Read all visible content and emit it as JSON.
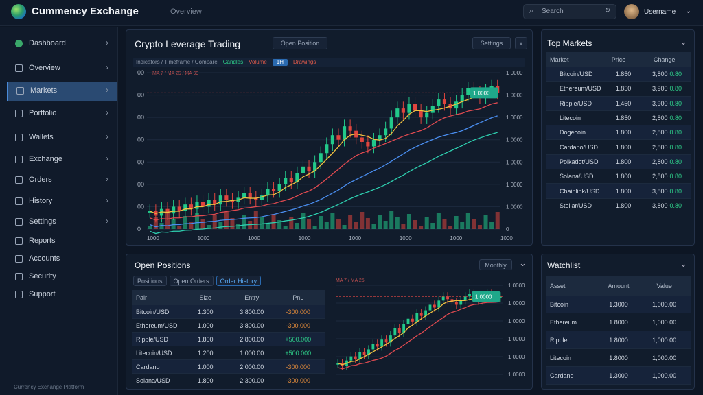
{
  "header": {
    "title": "Cummency Exchange",
    "subtitle": "Overview",
    "search_placeholder": "Search",
    "user": "Username"
  },
  "sidebar": {
    "items": [
      {
        "label": "Dashboard"
      },
      {
        "label": "Overview"
      },
      {
        "label": "Markets"
      },
      {
        "label": "Portfolio"
      },
      {
        "label": "Wallets"
      },
      {
        "label": "Exchange"
      },
      {
        "label": "Orders"
      },
      {
        "label": "History"
      },
      {
        "label": "Settings"
      },
      {
        "label": "Reports"
      },
      {
        "label": "Accounts"
      },
      {
        "label": "Security"
      },
      {
        "label": "Support"
      }
    ],
    "footer": "Currency Exchange Platform"
  },
  "main_chart": {
    "title": "Crypto Leverage Trading",
    "button": "Open Position",
    "toolbar": [
      "Indicators / Timeframe / Compare",
      "Candles",
      "Volume",
      "1H",
      "Drawings"
    ],
    "legend": "MA 7 / MA 25 / MA 99",
    "right_buttons": [
      "Settings",
      "x"
    ],
    "left_ticks": [
      "00",
      "00",
      "00",
      "00",
      "00",
      "00",
      "00",
      "0"
    ],
    "right_ticks": [
      "1 0000",
      "1 0000",
      "1 0000",
      "1 0000",
      "1 0000",
      "1 0000",
      "1 0000",
      "0"
    ],
    "x_ticks": [
      "1000",
      "1000",
      "1000",
      "1000",
      "1000",
      "1000",
      "1000",
      "1000"
    ],
    "price_badge": "1 0000",
    "closes": [
      40,
      38,
      41,
      39,
      42,
      40,
      43,
      41,
      44,
      42,
      45,
      43,
      47,
      45,
      44,
      46,
      48,
      46,
      45,
      47,
      50,
      49,
      52,
      55,
      53,
      57,
      60,
      58,
      62,
      66,
      70,
      74,
      72,
      78,
      76,
      73,
      71,
      69,
      72,
      74,
      77,
      82,
      86,
      84,
      88,
      85,
      82,
      84,
      87,
      90,
      88,
      86,
      89,
      92,
      95,
      93,
      91,
      94,
      96,
      93
    ],
    "colors": {
      "up": "#22c98a",
      "down": "#e0453e",
      "ma1": "#f0c040",
      "ma2": "#e04a50",
      "ma3": "#4a8ef0",
      "ma4": "#2ed0b0"
    }
  },
  "markets": {
    "title": "Top Markets",
    "columns": [
      "Market",
      "Price",
      "Change"
    ],
    "rows": [
      {
        "name": "Bitcoin/USD",
        "price": "1.850",
        "vol": "3,800",
        "chg": "0.80"
      },
      {
        "name": "Ethereum/USD",
        "price": "1.850",
        "vol": "3,900",
        "chg": "0.80"
      },
      {
        "name": "Ripple/USD",
        "price": "1.450",
        "vol": "3,900",
        "chg": "0.80"
      },
      {
        "name": "Litecoin",
        "price": "1.850",
        "vol": "2,800",
        "chg": "0.80"
      },
      {
        "name": "Dogecoin",
        "price": "1.800",
        "vol": "2,800",
        "chg": "0.80"
      },
      {
        "name": "Cardano/USD",
        "price": "1.800",
        "vol": "2,800",
        "chg": "0.80"
      },
      {
        "name": "Polkadot/USD",
        "price": "1.800",
        "vol": "2,800",
        "chg": "0.80"
      },
      {
        "name": "Solana/USD",
        "price": "1.800",
        "vol": "2,800",
        "chg": "0.80"
      },
      {
        "name": "Chainlink/USD",
        "price": "1.800",
        "vol": "3,800",
        "chg": "0.80"
      },
      {
        "name": "Stellar/USD",
        "price": "1.800",
        "vol": "3,800",
        "chg": "0.80"
      }
    ]
  },
  "positions": {
    "title": "Open Positions",
    "dropdown": "Monthly",
    "tabs": [
      "Positions",
      "Open Orders",
      "Order History"
    ],
    "columns": [
      "Pair",
      "Size",
      "Entry",
      "PnL"
    ],
    "rows": [
      {
        "pair": "Bitcoin/USD",
        "size": "1.300",
        "entry": "3,800.00",
        "pnl": "-300.000",
        "tone": "orange"
      },
      {
        "pair": "Ethereum/USD",
        "size": "1.000",
        "entry": "3,800.00",
        "pnl": "-300.000",
        "tone": "orange"
      },
      {
        "pair": "Ripple/USD",
        "size": "1.800",
        "entry": "2,800.00",
        "pnl": "+500.000",
        "tone": "green"
      },
      {
        "pair": "Litecoin/USD",
        "size": "1.200",
        "entry": "1,000.00",
        "pnl": "+500.000",
        "tone": "green"
      },
      {
        "pair": "Cardano",
        "size": "1.000",
        "entry": "2,000.00",
        "pnl": "-300.000",
        "tone": "orange"
      },
      {
        "pair": "Solana/USD",
        "size": "1.800",
        "entry": "2,300.00",
        "pnl": "-300.000",
        "tone": "orange"
      }
    ],
    "mini_legend": "MA 7 / MA 25",
    "mini_ticks": [
      "1 0000",
      "1 0000",
      "1 0000",
      "1 0000",
      "1 0000",
      "1 0000"
    ],
    "mini_badge": "1 0000",
    "mini_closes": [
      30,
      28,
      32,
      35,
      33,
      38,
      36,
      40,
      44,
      42,
      47,
      45,
      50,
      55,
      52,
      58,
      62,
      60,
      66,
      64,
      68,
      72,
      70,
      75,
      78,
      76,
      74,
      72,
      75,
      78,
      80,
      77,
      75,
      78,
      80,
      79,
      77,
      78
    ]
  },
  "watchlist": {
    "title": "Watchlist",
    "columns": [
      "Asset",
      "Amount",
      "Value"
    ],
    "rows": [
      {
        "name": "Bitcoin",
        "amt": "1.3000",
        "val": "1,000.00"
      },
      {
        "name": "Ethereum",
        "amt": "1.8000",
        "val": "1,000.00"
      },
      {
        "name": "Ripple",
        "amt": "1.8000",
        "val": "1,000.00"
      },
      {
        "name": "Litecoin",
        "amt": "1.8000",
        "val": "1,000.00"
      },
      {
        "name": "Cardano",
        "amt": "1.3000",
        "val": "1,000.00"
      }
    ]
  }
}
